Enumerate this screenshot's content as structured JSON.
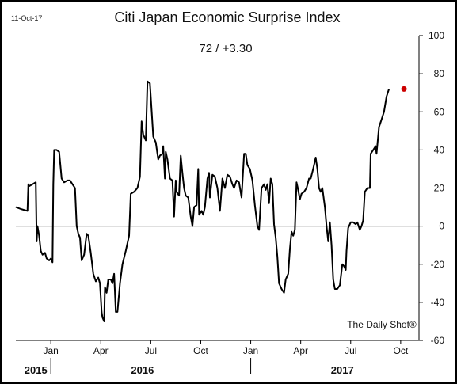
{
  "date_stamp": "11-Oct-17",
  "credit": "The Daily Shot®",
  "chart_data": {
    "type": "line",
    "title": "Citi Japan Economic Surprise Index",
    "subtitle": "72 / +3.30",
    "xlabel": "",
    "ylabel": "",
    "ylim": [
      -60,
      100
    ],
    "y_ticks": [
      100,
      80,
      60,
      40,
      20,
      0,
      -20,
      -40,
      -60
    ],
    "y_tick_labels": [
      "100",
      "80",
      "60",
      "40",
      "20",
      "0",
      "-20",
      "-40",
      "-60"
    ],
    "x_ticks": [
      1,
      4,
      7,
      10,
      13,
      16,
      19,
      22
    ],
    "x_tick_labels": [
      "Jan",
      "Apr",
      "Jul",
      "Oct",
      "Jan",
      "Apr",
      "Jul",
      "Oct"
    ],
    "x_ticks_unit": "months since Jan 2015 (Jan 2015 = 1)",
    "year_labels": [
      {
        "label": "2015",
        "x": 0.1
      },
      {
        "label": "2016",
        "x": 6.5
      },
      {
        "label": "2017",
        "x": 18.5
      }
    ],
    "year_separators": [
      1,
      13
    ],
    "xlim": [
      -1.1,
      23.1
    ],
    "zero_line": true,
    "grid": false,
    "last_point_marker": {
      "x": 22.2,
      "y": 72,
      "color": "#cc0000"
    },
    "line_color": "#000000",
    "series": [
      {
        "name": "",
        "points": [
          [
            -1.1,
            10
          ],
          [
            -0.8,
            9
          ],
          [
            -0.4,
            8
          ],
          [
            -0.35,
            22
          ],
          [
            -0.3,
            21
          ],
          [
            -0.1,
            22
          ],
          [
            0.1,
            23
          ],
          [
            0.15,
            -8
          ],
          [
            0.2,
            0
          ],
          [
            0.3,
            -5
          ],
          [
            0.4,
            -13
          ],
          [
            0.5,
            -15
          ],
          [
            0.65,
            -14
          ],
          [
            0.75,
            -17
          ],
          [
            0.9,
            -18
          ],
          [
            1.0,
            -17
          ],
          [
            1.1,
            -19
          ],
          [
            1.15,
            22
          ],
          [
            1.2,
            40
          ],
          [
            1.35,
            40
          ],
          [
            1.5,
            39
          ],
          [
            1.65,
            25
          ],
          [
            1.8,
            23
          ],
          [
            2.0,
            24
          ],
          [
            2.15,
            24
          ],
          [
            2.3,
            22
          ],
          [
            2.45,
            20
          ],
          [
            2.55,
            0
          ],
          [
            2.65,
            -4
          ],
          [
            2.75,
            -6
          ],
          [
            2.85,
            -18
          ],
          [
            3.0,
            -15
          ],
          [
            3.15,
            -4
          ],
          [
            3.25,
            -5
          ],
          [
            3.4,
            -14
          ],
          [
            3.55,
            -25
          ],
          [
            3.7,
            -29
          ],
          [
            3.85,
            -27
          ],
          [
            3.95,
            -30
          ],
          [
            4.05,
            -45
          ],
          [
            4.1,
            -48
          ],
          [
            4.2,
            -50
          ],
          [
            4.25,
            -32
          ],
          [
            4.35,
            -35
          ],
          [
            4.45,
            -28
          ],
          [
            4.6,
            -28
          ],
          [
            4.7,
            -30
          ],
          [
            4.8,
            -25
          ],
          [
            4.9,
            -45
          ],
          [
            5.0,
            -45
          ],
          [
            5.15,
            -30
          ],
          [
            5.3,
            -20
          ],
          [
            5.5,
            -13
          ],
          [
            5.7,
            -5
          ],
          [
            5.8,
            17
          ],
          [
            6.0,
            18
          ],
          [
            6.2,
            20
          ],
          [
            6.35,
            26
          ],
          [
            6.45,
            55
          ],
          [
            6.55,
            48
          ],
          [
            6.7,
            45
          ],
          [
            6.8,
            76
          ],
          [
            6.95,
            75
          ],
          [
            7.05,
            61
          ],
          [
            7.15,
            47
          ],
          [
            7.3,
            44
          ],
          [
            7.45,
            35
          ],
          [
            7.55,
            37
          ],
          [
            7.7,
            38
          ],
          [
            7.75,
            42
          ],
          [
            7.85,
            25
          ],
          [
            7.9,
            39
          ],
          [
            8.0,
            35
          ],
          [
            8.15,
            25
          ],
          [
            8.3,
            24
          ],
          [
            8.4,
            5
          ],
          [
            8.5,
            24
          ],
          [
            8.55,
            18
          ],
          [
            8.7,
            16
          ],
          [
            8.8,
            37
          ],
          [
            8.9,
            28
          ],
          [
            9.0,
            20
          ],
          [
            9.1,
            16
          ],
          [
            9.25,
            15
          ],
          [
            9.4,
            5
          ],
          [
            9.5,
            0
          ],
          [
            9.6,
            10
          ],
          [
            9.75,
            11
          ],
          [
            9.85,
            30
          ],
          [
            9.9,
            6
          ],
          [
            10.05,
            8
          ],
          [
            10.15,
            6
          ],
          [
            10.25,
            10
          ],
          [
            10.4,
            25
          ],
          [
            10.5,
            28
          ],
          [
            10.55,
            15
          ],
          [
            10.7,
            27
          ],
          [
            10.85,
            26
          ],
          [
            11.0,
            20
          ],
          [
            11.15,
            8
          ],
          [
            11.3,
            25
          ],
          [
            11.45,
            20
          ],
          [
            11.6,
            27
          ],
          [
            11.75,
            26
          ],
          [
            11.9,
            22
          ],
          [
            12.0,
            20
          ],
          [
            12.15,
            24
          ],
          [
            12.3,
            23
          ],
          [
            12.45,
            15
          ],
          [
            12.6,
            38
          ],
          [
            12.7,
            38
          ],
          [
            12.8,
            32
          ],
          [
            12.95,
            30
          ],
          [
            13.1,
            24
          ],
          [
            13.25,
            11
          ],
          [
            13.4,
            0
          ],
          [
            13.5,
            -2
          ],
          [
            13.65,
            20
          ],
          [
            13.8,
            22
          ],
          [
            13.9,
            19
          ],
          [
            14.0,
            22
          ],
          [
            14.1,
            12
          ],
          [
            14.2,
            25
          ],
          [
            14.3,
            22
          ],
          [
            14.4,
            1
          ],
          [
            14.5,
            -6
          ],
          [
            14.6,
            -16
          ],
          [
            14.7,
            -30
          ],
          [
            14.85,
            -33
          ],
          [
            15.0,
            -35
          ],
          [
            15.1,
            -28
          ],
          [
            15.25,
            -25
          ],
          [
            15.35,
            -12
          ],
          [
            15.45,
            -3
          ],
          [
            15.55,
            -5
          ],
          [
            15.65,
            -2
          ],
          [
            15.75,
            23
          ],
          [
            15.85,
            19
          ],
          [
            15.95,
            14
          ],
          [
            16.05,
            17
          ],
          [
            16.2,
            18
          ],
          [
            16.35,
            20
          ],
          [
            16.5,
            25
          ],
          [
            16.6,
            25
          ],
          [
            16.75,
            30
          ],
          [
            16.9,
            36
          ],
          [
            17.0,
            30
          ],
          [
            17.1,
            20
          ],
          [
            17.2,
            18
          ],
          [
            17.3,
            20
          ],
          [
            17.45,
            10
          ],
          [
            17.55,
            0
          ],
          [
            17.65,
            -8
          ],
          [
            17.75,
            2
          ],
          [
            17.85,
            -10
          ],
          [
            17.95,
            -28
          ],
          [
            18.05,
            -33
          ],
          [
            18.2,
            -33
          ],
          [
            18.35,
            -31
          ],
          [
            18.5,
            -20
          ],
          [
            18.6,
            -21
          ],
          [
            18.7,
            -23
          ],
          [
            18.75,
            -13
          ],
          [
            18.85,
            -1
          ],
          [
            19.0,
            2
          ],
          [
            19.15,
            2
          ],
          [
            19.3,
            1
          ],
          [
            19.4,
            2
          ],
          [
            19.55,
            -2
          ],
          [
            19.65,
            0
          ],
          [
            19.75,
            3
          ],
          [
            19.85,
            18
          ],
          [
            20.0,
            20
          ],
          [
            20.15,
            20
          ],
          [
            20.2,
            38
          ],
          [
            20.35,
            40
          ],
          [
            20.5,
            42
          ],
          [
            20.55,
            38
          ],
          [
            20.7,
            52
          ],
          [
            20.85,
            56
          ],
          [
            21.0,
            60
          ],
          [
            21.15,
            68
          ],
          [
            21.3,
            72
          ]
        ]
      }
    ]
  }
}
